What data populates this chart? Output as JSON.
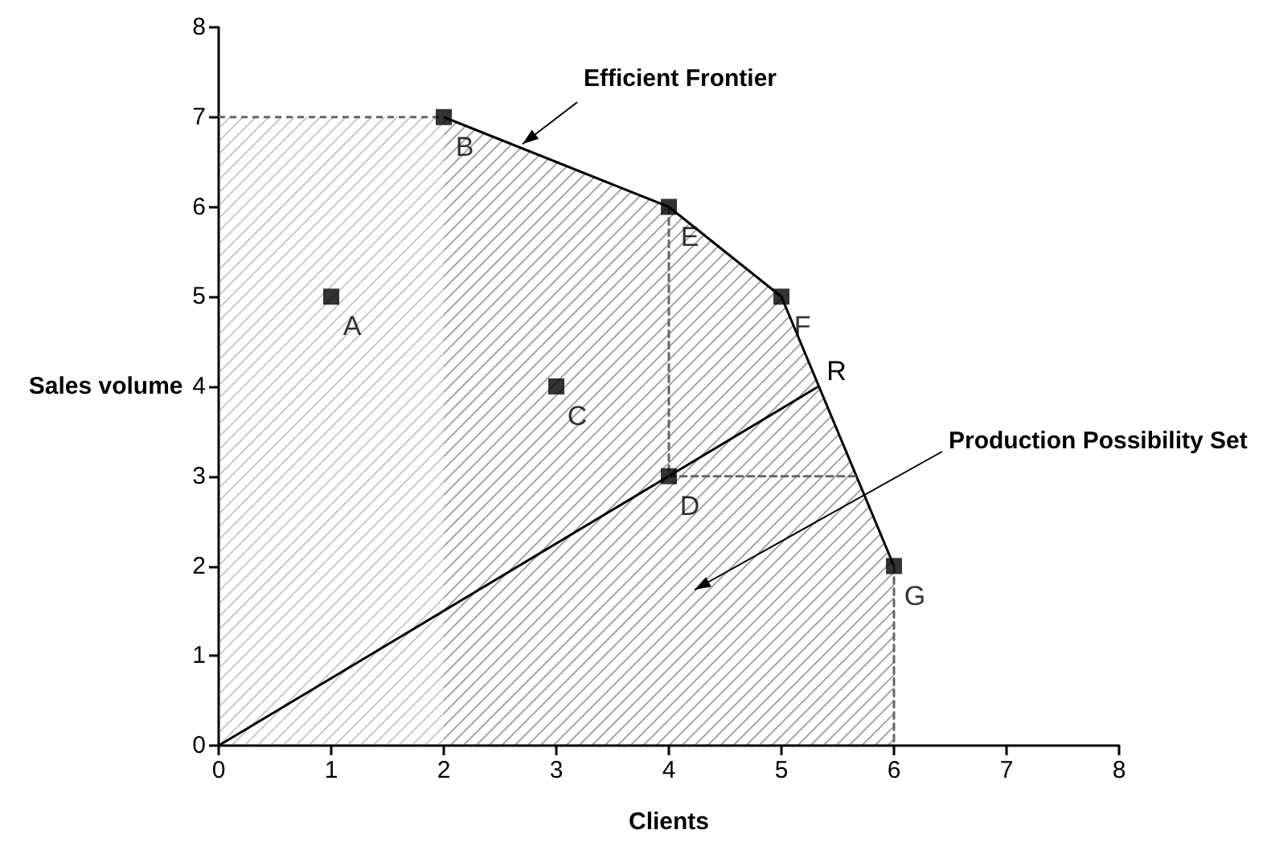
{
  "chart_data": {
    "type": "scatter",
    "xlabel": "Clients",
    "ylabel": "Sales volume",
    "xlim": [
      0,
      8
    ],
    "xticks": [
      0,
      1,
      2,
      3,
      4,
      5,
      6,
      7,
      8
    ],
    "ylim": [
      0,
      8
    ],
    "yticks": [
      0,
      1,
      2,
      3,
      4,
      5,
      6,
      7,
      8
    ],
    "grid": false,
    "marker": "square",
    "series": [
      {
        "type": "area",
        "color": "#666666",
        "marker": "none",
        "line_style": "dashed",
        "x": [
          0,
          2
        ],
        "values": [
          7,
          7
        ]
      },
      {
        "type": "area",
        "color": "#000000",
        "marker": "none",
        "x": [
          2,
          4,
          5,
          6
        ],
        "values": [
          7,
          6,
          5,
          2
        ]
      },
      {
        "type": "line",
        "color": "#000000",
        "marker": "none",
        "x": [
          0,
          5.33
        ],
        "values": [
          0,
          4
        ]
      },
      {
        "type": "line",
        "color": "#666666",
        "marker": "none",
        "line_style": "dashed",
        "x": [
          4,
          4
        ],
        "values": [
          6,
          3
        ]
      },
      {
        "type": "line",
        "color": "#666666",
        "marker": "none",
        "line_style": "dashed",
        "x": [
          4,
          5.67
        ],
        "values": [
          3,
          3
        ]
      },
      {
        "type": "line",
        "color": "#666666",
        "marker": "none",
        "line_style": "dashed",
        "x": [
          6,
          6
        ],
        "values": [
          2,
          0
        ]
      },
      {
        "color": "#000000",
        "x": [
          1,
          2,
          3,
          4,
          4,
          5,
          6
        ],
        "values": [
          5,
          7,
          4,
          3,
          6,
          5,
          2
        ],
        "value_labels": [
          "A",
          "B",
          "C",
          "D",
          "E",
          "F",
          "G"
        ]
      }
    ],
    "annotations": [
      {
        "text": "Efficient Frontier",
        "x": 2.7,
        "y": 6.7
      },
      "Production Possibility Set",
      {
        "text": "R",
        "x": 5.33,
        "y": 4
      }
    ]
  }
}
